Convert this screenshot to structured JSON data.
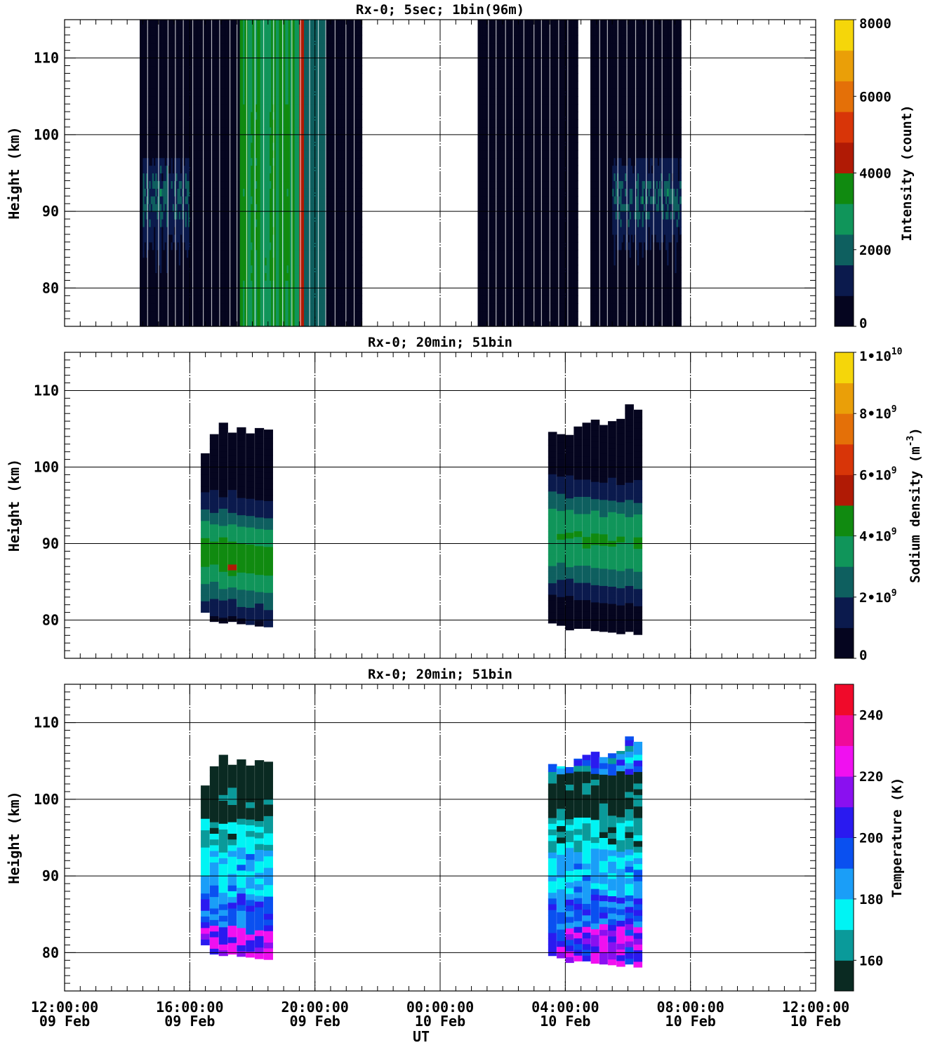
{
  "figure": {
    "xaxis_label": "UT",
    "x_ticks": [
      {
        "time": "12:00:00",
        "date": "09 Feb"
      },
      {
        "time": "16:00:00",
        "date": "09 Feb"
      },
      {
        "time": "20:00:00",
        "date": "09 Feb"
      },
      {
        "time": "00:00:00",
        "date": "10 Feb"
      },
      {
        "time": "04:00:00",
        "date": "10 Feb"
      },
      {
        "time": "08:00:00",
        "date": "10 Feb"
      },
      {
        "time": "12:00:00",
        "date": "10 Feb"
      }
    ]
  },
  "chart_data": [
    {
      "type": "heatmap",
      "title": "Rx-0;  5sec; 1bin(96m)",
      "ylabel": "Height (km)",
      "ylim": [
        75,
        115
      ],
      "y_ticks": [
        80,
        90,
        100,
        110
      ],
      "xlim_hours": [
        0,
        48
      ],
      "x_grid_hours": [
        8,
        16,
        24,
        32,
        40
      ],
      "colorbar": {
        "label": "Intensity (count)",
        "range": [
          0,
          8000
        ],
        "tick_labels": [
          {
            "value": 0,
            "label": "0"
          },
          {
            "value": 2000,
            "label": "2000"
          },
          {
            "value": 4000,
            "label": "4000"
          },
          {
            "value": 6000,
            "label": "6000"
          },
          {
            "value": 8000,
            "label": "8000"
          }
        ],
        "colors": [
          "#05051f",
          "#0b1a4d",
          "#0e5f5f",
          "#10955a",
          "#108a10",
          "#b01a05",
          "#d83508",
          "#e47008",
          "#ea9f08",
          "#f5d60a"
        ]
      },
      "data_extent_hours": [
        [
          4.8,
          19.0
        ],
        [
          26.4,
          32.8
        ],
        [
          33.6,
          39.4
        ]
      ],
      "bright_band_hours": [
        11.2,
        15.2
      ],
      "peak_hours": 15.2,
      "layer_height_km": [
        86,
        96
      ]
    },
    {
      "type": "heatmap",
      "title": "Rx-0; 20min; 51bin",
      "ylabel": "Height (km)",
      "ylim": [
        75,
        115
      ],
      "y_ticks": [
        80,
        90,
        100,
        110
      ],
      "xlim_hours": [
        0,
        48
      ],
      "x_grid_hours": [
        8,
        16,
        24,
        32,
        40
      ],
      "colorbar": {
        "label": "Sodium density (m",
        "label_exp": "-3",
        "label_end": ")",
        "range": [
          0,
          10000000000
        ],
        "tick_labels": [
          {
            "value": 0,
            "mant": "0",
            "exp": ""
          },
          {
            "value": 2000000000,
            "mant": "2•10",
            "exp": "9"
          },
          {
            "value": 4000000000,
            "mant": "4•10",
            "exp": "9"
          },
          {
            "value": 6000000000,
            "mant": "6•10",
            "exp": "9"
          },
          {
            "value": 8000000000,
            "mant": "8•10",
            "exp": "9"
          },
          {
            "value": 10000000000,
            "mant": "1•10",
            "exp": "10"
          }
        ],
        "colors": [
          "#05051f",
          "#0b1a4d",
          "#0e5f5f",
          "#10955a",
          "#108a10",
          "#b01a05",
          "#d83508",
          "#e47008",
          "#ea9f08",
          "#f5d60a"
        ]
      },
      "blocks": [
        {
          "start_hours": 8.7,
          "end_hours": 13.3,
          "bottom_km": [
            81,
            79.8,
            79.6,
            79.8,
            79.5,
            79.4,
            79.2,
            79.1
          ],
          "top_km": [
            101.8,
            104.3,
            105.8,
            104.5,
            105.2,
            104.4,
            105.1,
            104.9
          ]
        },
        {
          "start_hours": 30.9,
          "end_hours": 36.9,
          "bottom_km": [
            79.6,
            79.3,
            78.7,
            78.9,
            78.9,
            78.6,
            78.5,
            78.4,
            78.2,
            78.5,
            78.1
          ],
          "top_km": [
            104.6,
            104.3,
            104.2,
            105.3,
            105.8,
            106.2,
            105.5,
            106.0,
            106.3,
            108.2,
            107.5
          ]
        }
      ],
      "peak_density_point": {
        "hours": 11.0,
        "height_km": 86.3
      }
    },
    {
      "type": "heatmap",
      "title": "Rx-0; 20min; 51bin",
      "ylabel": "Height (km)",
      "ylim": [
        75,
        115
      ],
      "y_ticks": [
        80,
        90,
        100,
        110
      ],
      "xlim_hours": [
        0,
        48
      ],
      "x_grid_hours": [
        8,
        16,
        24,
        32,
        40
      ],
      "colorbar": {
        "label": "Temperature (K)",
        "range": [
          150,
          250
        ],
        "tick_labels": [
          {
            "value": 160,
            "label": "160"
          },
          {
            "value": 180,
            "label": "180"
          },
          {
            "value": 200,
            "label": "200"
          },
          {
            "value": 220,
            "label": "220"
          },
          {
            "value": 240,
            "label": "240"
          }
        ],
        "colors": [
          "#0a2a22",
          "#0a9a9a",
          "#00f4f4",
          "#1a9ef8",
          "#0a50f0",
          "#2a1af0",
          "#8a10f0",
          "#f010f0",
          "#f00a9a",
          "#f00a2a"
        ]
      },
      "blocks": [
        {
          "start_hours": 8.7,
          "end_hours": 13.3,
          "bottom_km": [
            81,
            79.8,
            79.6,
            79.8,
            79.5,
            79.4,
            79.2,
            79.1
          ],
          "top_km": [
            101.8,
            104.3,
            105.8,
            104.5,
            105.2,
            104.4,
            105.1,
            104.9
          ]
        },
        {
          "start_hours": 30.9,
          "end_hours": 36.9,
          "bottom_km": [
            79.6,
            79.3,
            78.7,
            78.9,
            78.9,
            78.6,
            78.5,
            78.4,
            78.2,
            78.5,
            78.1
          ],
          "top_km": [
            104.6,
            104.3,
            104.2,
            105.3,
            105.8,
            106.2,
            105.5,
            106.0,
            106.3,
            108.2,
            107.5
          ]
        }
      ]
    }
  ]
}
